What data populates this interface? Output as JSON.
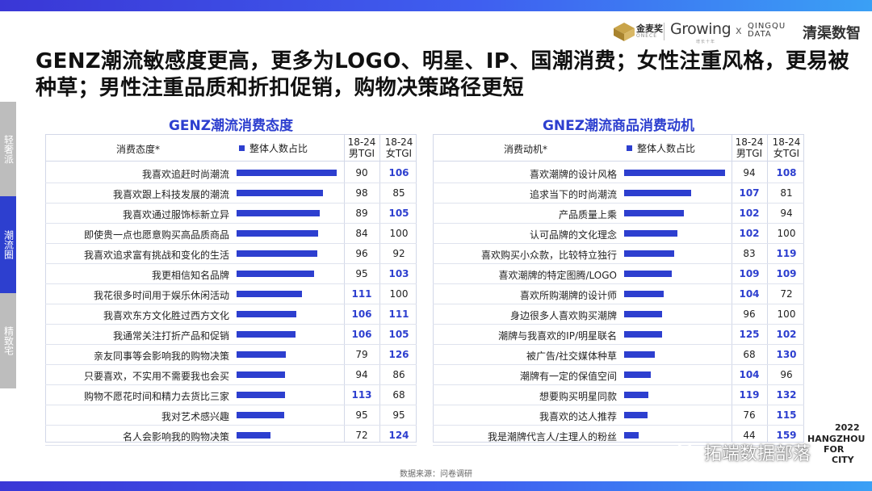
{
  "title": "GENZ潮流敏感度更高，更多为LOGO、明星、IP、国潮消费；女性注重风格，更易被种草；男性注重品质和折扣促销，购物决策路径更短",
  "logos": {
    "jinmaijiang": "金麦奖",
    "jinmaijiang_sub": "ONECE",
    "growing": "Growing",
    "growing_sub": "增长十年",
    "x": "x",
    "qingqu_data_line1": "QINGQU",
    "qingqu_data_line2": "DATA",
    "qingqu_shuzhi": "清渠数智"
  },
  "side_tabs": [
    {
      "label": "轻奢派",
      "active": false
    },
    {
      "label": "潮流圈",
      "active": true
    },
    {
      "label": "精致宅",
      "active": false
    }
  ],
  "accent_color": "#2d3fcf",
  "chart_data": [
    {
      "type": "bar",
      "title": "GENZ潮流消费态度",
      "category_header": "消费态度*",
      "legend": "整体人数占比",
      "tgi_headers": {
        "male": "18-24\n男TGI",
        "female": "18-24\n女TGI"
      },
      "categories": [
        "我喜欢追赶时尚潮流",
        "我喜欢跟上科技发展的潮流",
        "我喜欢通过服饰标新立异",
        "即使贵一点也愿意购买高品质商品",
        "我喜欢追求富有挑战和变化的生活",
        "我更相信知名品牌",
        "我花很多时间用于娱乐休闲活动",
        "我喜欢东方文化胜过西方文化",
        "我通常关注打折产品和促销",
        "亲友同事等会影响我的购物决策",
        "只要喜欢，不实用不需要我也会买",
        "购物不愿花时间和精力去货比三家",
        "我对艺术感兴趣",
        "名人会影响我的购物决策"
      ],
      "series": [
        {
          "name": "整体人数占比",
          "values": [
            0.95,
            0.82,
            0.79,
            0.78,
            0.77,
            0.74,
            0.62,
            0.57,
            0.56,
            0.47,
            0.46,
            0.46,
            0.45,
            0.32
          ]
        }
      ],
      "tgi_male": [
        "90",
        "98",
        "89",
        "84",
        "96",
        "95",
        "111",
        "106",
        "106",
        "79",
        "94",
        "113",
        "95",
        "72"
      ],
      "tgi_female": [
        "106",
        "85",
        "105",
        "100",
        "92",
        "103",
        "100",
        "111",
        "105",
        "126",
        "86",
        "68",
        "95",
        "124"
      ],
      "xlim": [
        0,
        1
      ]
    },
    {
      "type": "bar",
      "title": "GNEZ潮流商品消费动机",
      "category_header": "消费动机*",
      "legend": "整体人数占比",
      "tgi_headers": {
        "male": "18-24\n男TGI",
        "female": "18-24\n女TGI"
      },
      "categories": [
        "喜欢潮牌的设计风格",
        "追求当下的时尚潮流",
        "产品质量上乘",
        "认可品牌的文化理念",
        "喜欢购买小众款，比较特立独行",
        "喜欢潮牌的特定图腾/LOGO",
        "喜欢所购潮牌的设计师",
        "身边很多人喜欢购买潮牌",
        "潮牌与我喜欢的IP/明星联名",
        "被广告/社交媒体种草",
        "潮牌有一定的保值空间",
        "想要购买明星同款",
        "我喜欢的达人推荐",
        "我是潮牌代言人/主理人的粉丝"
      ],
      "series": [
        {
          "name": "整体人数占比",
          "values": [
            0.96,
            0.64,
            0.57,
            0.51,
            0.48,
            0.45,
            0.38,
            0.36,
            0.36,
            0.29,
            0.25,
            0.23,
            0.22,
            0.14
          ]
        }
      ],
      "tgi_male": [
        "94",
        "107",
        "102",
        "102",
        "83",
        "109",
        "104",
        "96",
        "125",
        "68",
        "104",
        "119",
        "76",
        "44"
      ],
      "tgi_female": [
        "108",
        "81",
        "94",
        "100",
        "119",
        "109",
        "72",
        "100",
        "102",
        "130",
        "96",
        "132",
        "115",
        "159"
      ],
      "xlim": [
        0,
        1
      ]
    }
  ],
  "source_note": "数据来源：问卷调研",
  "corner": {
    "year": "2022",
    "city": "HANGZHOU",
    "line3": "FOR",
    "line4": "CITY"
  },
  "watermark": "拓端数据部落"
}
